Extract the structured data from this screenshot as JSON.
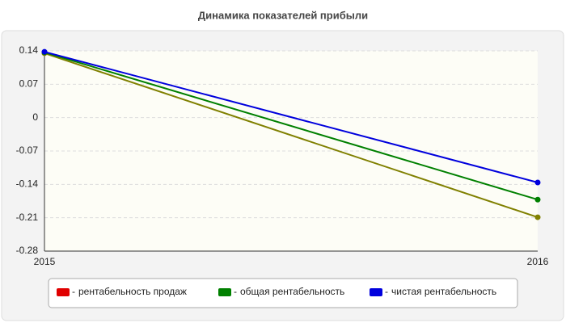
{
  "chart_data": {
    "type": "line",
    "title": "Динамика показателей прибыли",
    "categories": [
      "2015",
      "2016"
    ],
    "series": [
      {
        "name": "рентабельность продаж",
        "color": "#e00000",
        "line_color": "#808000",
        "values": [
          0.135,
          -0.209
        ]
      },
      {
        "name": "общая рентабельность",
        "color": "#008000",
        "values": [
          0.137,
          -0.172
        ]
      },
      {
        "name": "чистая рентабельность",
        "color": "#0000dd",
        "values": [
          0.138,
          -0.136
        ]
      }
    ],
    "ylim": [
      -0.28,
      0.14
    ],
    "yticks": [
      0.14,
      0.07,
      0,
      -0.07,
      -0.14,
      -0.21,
      -0.28
    ],
    "grid": true,
    "legend_separator": "-"
  }
}
